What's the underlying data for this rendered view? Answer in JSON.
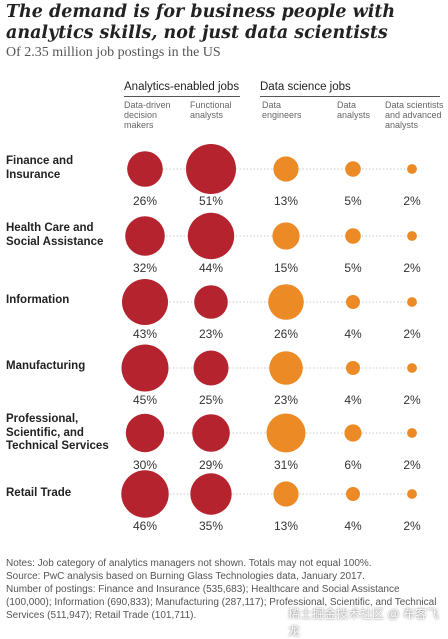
{
  "header": {
    "title": "The demand is for business people with analytics skills, not just data scientists",
    "subtitle": "Of 2.35 million job postings in the US"
  },
  "groups": [
    {
      "label": "Analytics-enabled jobs"
    },
    {
      "label": "Data science jobs"
    }
  ],
  "columns": [
    {
      "label": "Data-driven decision makers",
      "group": 0
    },
    {
      "label": "Functional analysts",
      "group": 0
    },
    {
      "label": "Data engineers",
      "group": 1
    },
    {
      "label": "Data analysts",
      "group": 1
    },
    {
      "label": "Data scientists and advanced analysts",
      "group": 1
    }
  ],
  "colors": {
    "analytics_enabled": "#b5232e",
    "data_science": "#ec8a26",
    "connector": "#c9c9c9"
  },
  "chart_data": {
    "type": "bubble-matrix",
    "unit": "%",
    "rows": [
      {
        "label": "Finance and Insurance",
        "values": [
          26,
          51,
          13,
          5,
          2
        ]
      },
      {
        "label": "Health Care and Social Assistance",
        "values": [
          32,
          44,
          15,
          5,
          2
        ]
      },
      {
        "label": "Information",
        "values": [
          43,
          23,
          26,
          4,
          2
        ]
      },
      {
        "label": "Manufacturing",
        "values": [
          45,
          25,
          23,
          4,
          2
        ]
      },
      {
        "label": "Professional, Scientific, and Technical Services",
        "values": [
          30,
          29,
          31,
          6,
          2
        ]
      },
      {
        "label": "Retail Trade",
        "values": [
          46,
          35,
          13,
          4,
          2
        ]
      }
    ]
  },
  "notes": {
    "line1": "Notes: Job category of analytics managers not shown. Totals may not equal 100%.",
    "line2": "Source: PwC analysis based on Burning Glass Technologies data, January 2017.",
    "line3": "Number of postings: Finance and Insurance (535,683); Healthcare and Social Assistance (100,000); Information (690,833); Manufacturing (287,117); Professional, Scientific, and Technical Services (511,947); Retail Trade (101,711)."
  },
  "watermark": "稀土掘金技术社区 @ 布客飞龙"
}
